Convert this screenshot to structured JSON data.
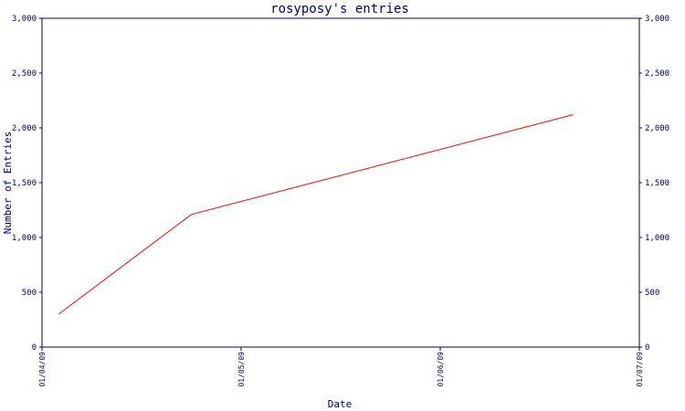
{
  "chart_data": {
    "type": "line",
    "title": "rosyposy's entries",
    "xlabel": "Date",
    "ylabel": "Number of Entries",
    "x_axis": {
      "type": "date",
      "range": [
        "2009-01-04",
        "2009-01-07"
      ],
      "tick_values": [
        "2009-01-04",
        "2009-01-05",
        "2009-01-06",
        "2009-01-07"
      ],
      "tick_labels": [
        "01/04/09",
        "01/05/09",
        "01/06/09",
        "01/07/09"
      ]
    },
    "y_axis": {
      "range": [
        0,
        3000
      ],
      "tick_values": [
        0,
        500,
        1000,
        1500,
        2000,
        2500,
        3000
      ],
      "tick_labels": [
        "0",
        "500",
        "1,000",
        "1,500",
        "2,000",
        "2,500",
        "3,000"
      ],
      "mirrored_right": true
    },
    "grid": false,
    "series": [
      {
        "color": "#ff0000",
        "x": [
          "2009-01-04 02:00",
          "2009-01-04 18:00",
          "2009-01-06 16:00"
        ],
        "values": [
          300,
          1210,
          2120
        ]
      }
    ]
  },
  "colors": {
    "axis": "#000080",
    "text": "#000080",
    "series": "#ff0000",
    "background": "#ffffff"
  }
}
